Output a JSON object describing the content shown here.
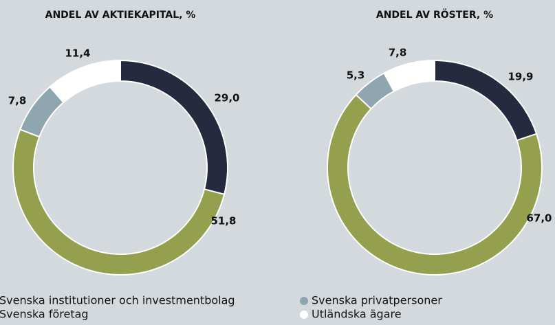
{
  "legend": [
    {
      "name": "Svenska institutioner och investmentbolag",
      "color": "#262a3e"
    },
    {
      "name": "Svenska företag",
      "color": "#94a04e"
    },
    {
      "name": "Svenska privatpersoner",
      "color": "#8fa6b0"
    },
    {
      "name": "Utländska ägare",
      "color": "#ffffff"
    }
  ],
  "chart_data": [
    {
      "type": "pie",
      "title": "ANDEL AV AKTIEKAPITAL, %",
      "values": [
        29.0,
        51.8,
        7.8,
        11.4
      ],
      "value_labels": [
        "29,0",
        "51,8",
        "7,8",
        "11,4"
      ]
    },
    {
      "type": "pie",
      "title": "ANDEL AV RÖSTER, %",
      "values": [
        19.9,
        67.0,
        5.3,
        7.8
      ],
      "value_labels": [
        "19,9",
        "67,0",
        "5,3",
        "7,8"
      ]
    }
  ]
}
